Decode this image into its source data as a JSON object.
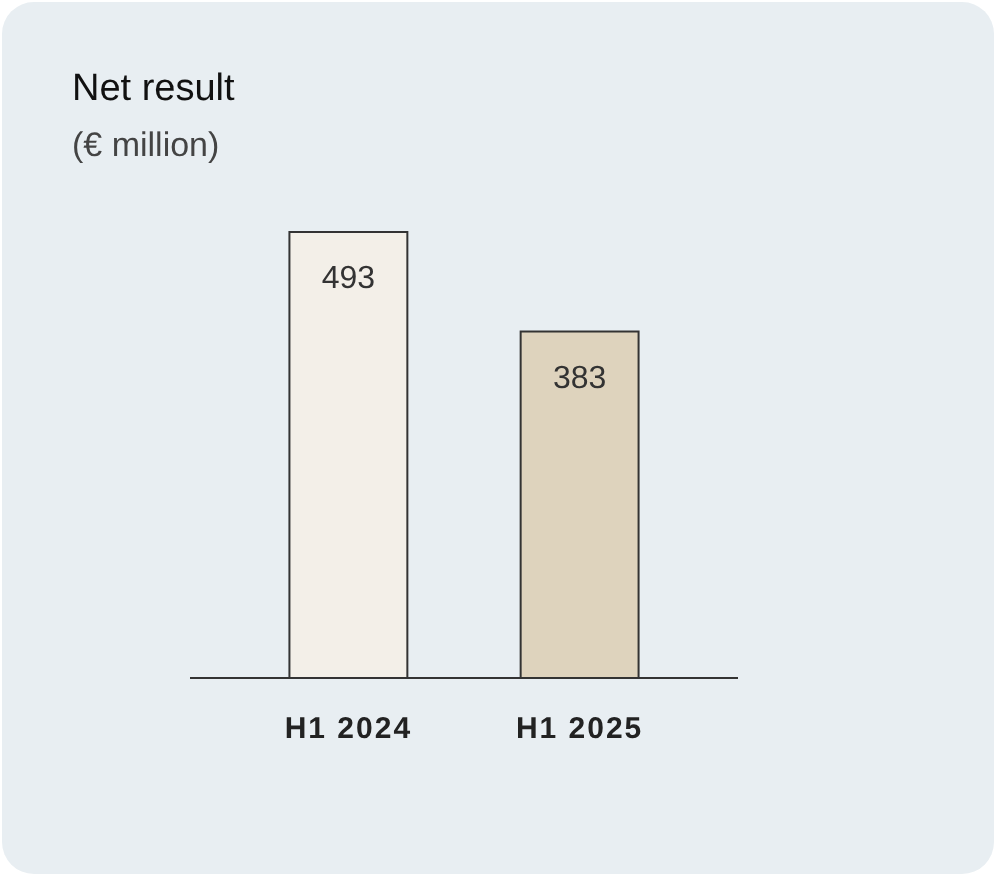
{
  "chart_data": {
    "type": "bar",
    "title": "Net result",
    "subtitle": "(€ million)",
    "categories": [
      "H1 2024",
      "H1 2025"
    ],
    "values": [
      493,
      383
    ],
    "colors": [
      "#f3efe8",
      "#ded3bd"
    ],
    "data_labels": true
  }
}
